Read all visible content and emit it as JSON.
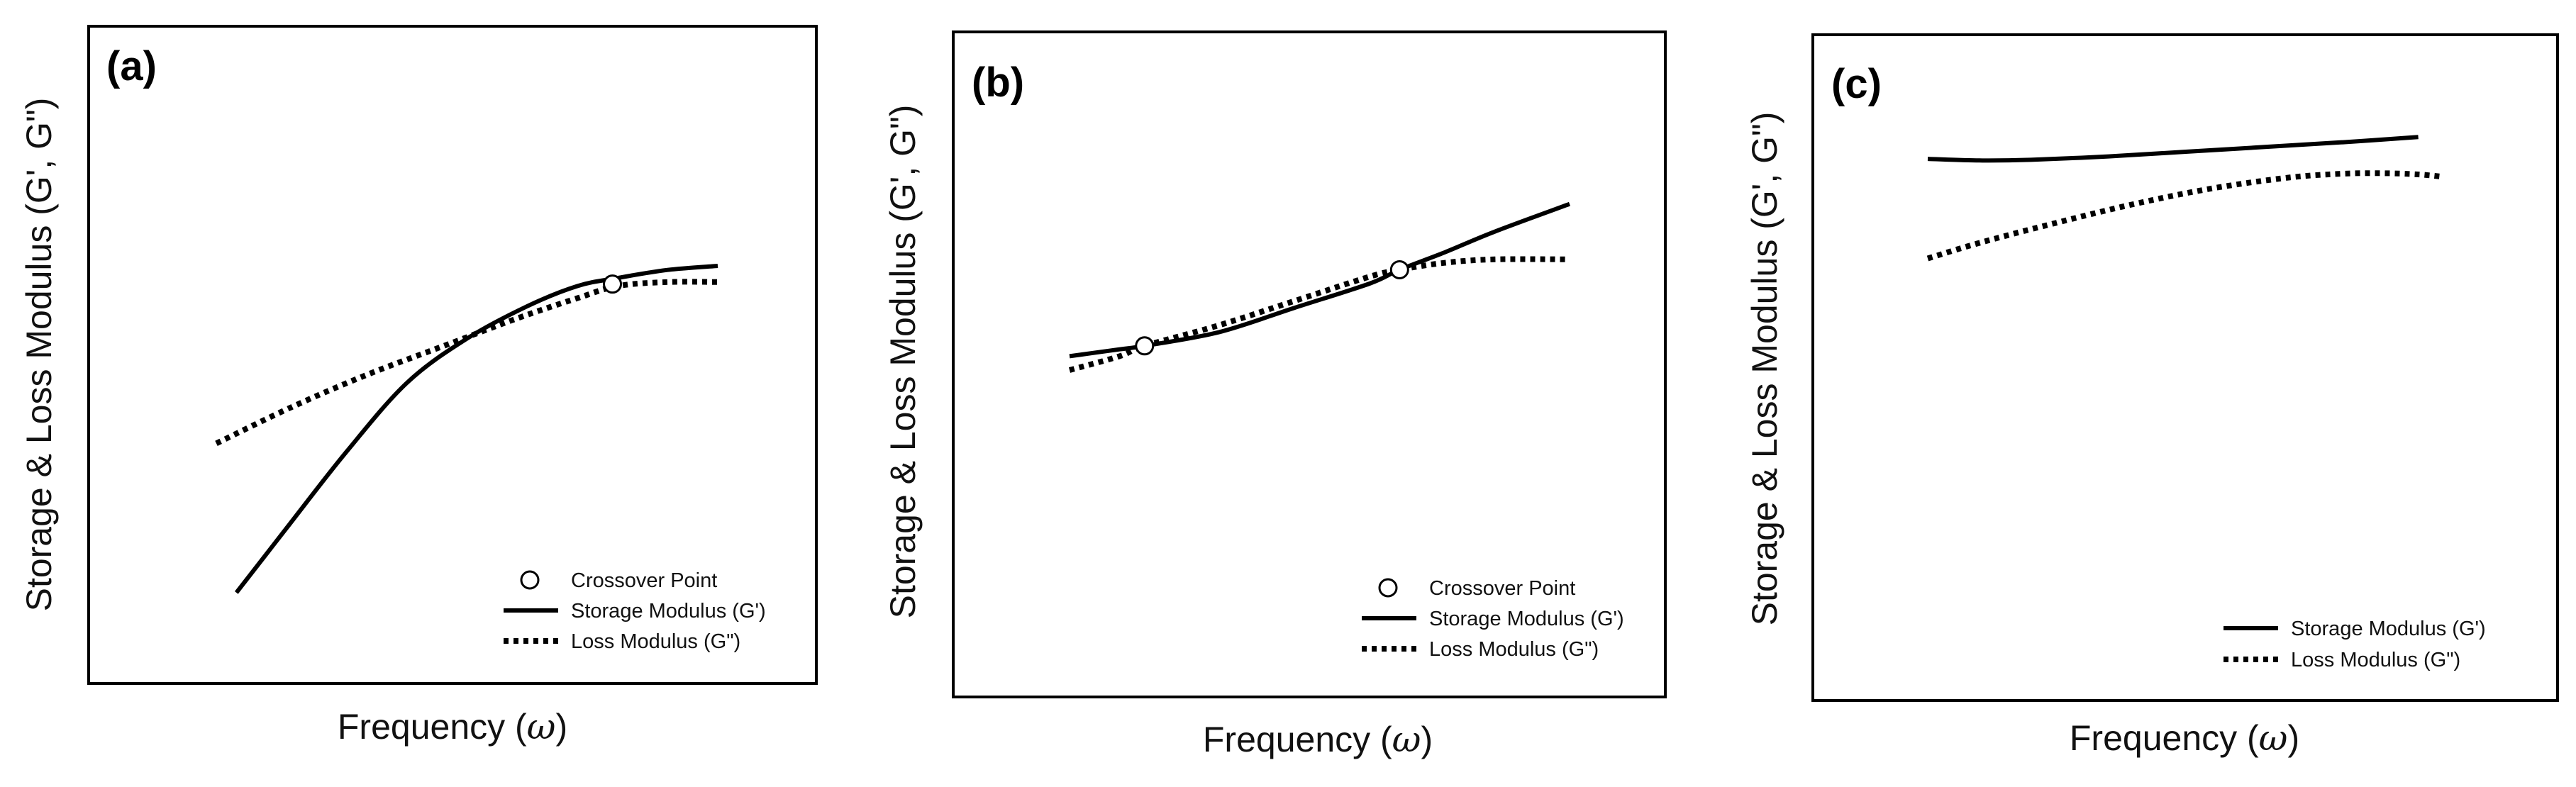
{
  "chart_data": [
    {
      "type": "line",
      "panel_label": "(a)",
      "xlabel_prefix": "Frequency (",
      "xlabel_symbol": "ω",
      "xlabel_suffix": ")",
      "ylabel": "Storage & Loss Modulus (G', G\")",
      "xlim": [
        0,
        100
      ],
      "ylim": [
        0,
        100
      ],
      "grid": false,
      "legend_position": "bottom-right",
      "series": [
        {
          "name": "Storage Modulus (G')",
          "style": "solid",
          "x": [
            4,
            14,
            26,
            38,
            50,
            62,
            72,
            80,
            90,
            100
          ],
          "y": [
            3,
            19,
            38,
            55,
            66,
            74,
            79,
            81,
            83,
            84
          ]
        },
        {
          "name": "Loss Modulus (G\")",
          "style": "dotted",
          "x": [
            0,
            15,
            30,
            45,
            60,
            72,
            80,
            90,
            100
          ],
          "y": [
            40,
            49,
            57,
            64,
            71,
            76,
            79,
            80,
            80
          ]
        }
      ],
      "crossover_points": [
        {
          "x": 79,
          "y": 79.5
        }
      ],
      "legend": [
        {
          "kind": "marker",
          "label": "Crossover Point"
        },
        {
          "kind": "solid",
          "label": "Storage Modulus (G')"
        },
        {
          "kind": "dotted",
          "label": "Loss Modulus (G\")"
        }
      ]
    },
    {
      "type": "line",
      "panel_label": "(b)",
      "xlabel_prefix": "Frequency (",
      "xlabel_symbol": "ω",
      "xlabel_suffix": ")",
      "ylabel": "Storage & Loss Modulus (G', G\")",
      "xlim": [
        0,
        100
      ],
      "ylim": [
        0,
        100
      ],
      "grid": false,
      "legend_position": "bottom-right",
      "series": [
        {
          "name": "Storage Modulus (G')",
          "style": "solid",
          "x": [
            0,
            10,
            15,
            30,
            45,
            60,
            66,
            75,
            85,
            100
          ],
          "y": [
            37,
            39,
            40,
            44,
            51,
            58,
            62,
            67,
            73,
            81
          ]
        },
        {
          "name": "Loss Modulus (G\")",
          "style": "dotted",
          "x": [
            0,
            10,
            15,
            30,
            45,
            60,
            66,
            75,
            85,
            100
          ],
          "y": [
            33,
            37,
            40,
            46,
            53,
            60,
            62,
            64,
            65,
            65
          ]
        }
      ],
      "crossover_points": [
        {
          "x": 15,
          "y": 40
        },
        {
          "x": 66,
          "y": 62
        }
      ],
      "legend": [
        {
          "kind": "marker",
          "label": "Crossover Point"
        },
        {
          "kind": "solid",
          "label": "Storage Modulus (G')"
        },
        {
          "kind": "dotted",
          "label": "Loss Modulus (G\")"
        }
      ]
    },
    {
      "type": "line",
      "panel_label": "(c)",
      "xlabel_prefix": "Frequency (",
      "xlabel_symbol": "ω",
      "xlabel_suffix": ")",
      "ylabel": "Storage & Loss Modulus (G', G\")",
      "xlim": [
        0,
        100
      ],
      "ylim": [
        0,
        100
      ],
      "grid": false,
      "legend_position": "bottom-right",
      "series": [
        {
          "name": "Storage Modulus (G')",
          "style": "solid",
          "x": [
            0,
            10,
            20,
            35,
            50,
            65,
            80,
            95
          ],
          "y": [
            87,
            86.5,
            86.7,
            87.8,
            89.3,
            90.8,
            92.3,
            94
          ]
        },
        {
          "name": "Loss Modulus (G\")",
          "style": "dotted",
          "x": [
            0,
            10,
            25,
            40,
            55,
            70,
            80,
            88,
            95,
            100
          ],
          "y": [
            55,
            60,
            66.5,
            72.5,
            77.5,
            81,
            82.2,
            82.4,
            82,
            81.2
          ]
        }
      ],
      "crossover_points": [],
      "legend": [
        {
          "kind": "solid",
          "label": "Storage Modulus (G')"
        },
        {
          "kind": "dotted",
          "label": "Loss Modulus (G\")"
        }
      ]
    }
  ]
}
